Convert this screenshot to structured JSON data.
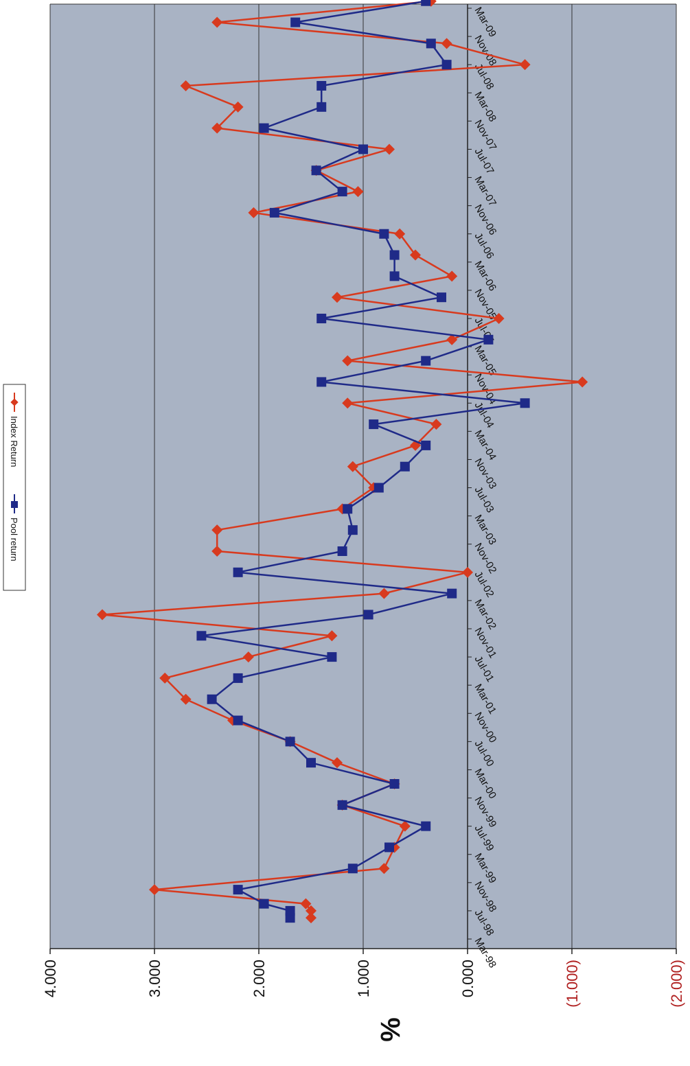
{
  "chart_data": {
    "type": "line",
    "title": "",
    "xlabel": "",
    "ylabel": "%",
    "ylim": [
      -2,
      4
    ],
    "y_ticks": [
      4,
      3,
      2,
      1,
      0,
      -1,
      -2
    ],
    "y_tick_labels": [
      "4.000",
      "3.000",
      "2.000",
      "1.000",
      "0.000",
      "(1.000)",
      "(2.000)"
    ],
    "negative_tick_color": "#b02020",
    "grid": true,
    "legend_position": "top",
    "orientation": "rotated 90 degrees clockwise (value axis runs horizontally, dates run vertically)",
    "category_labels": [
      "Mar-98",
      "Jul-98",
      "Nov-98",
      "Mar-99",
      "Jul-99",
      "Nov-99",
      "Mar-00",
      "Jul-00",
      "Nov-00",
      "Mar-01",
      "Jul-01",
      "Nov-01",
      "Mar-02",
      "Jul-02",
      "Nov-02",
      "Mar-03",
      "Jul-03",
      "Nov-03",
      "Mar-04",
      "Jul-04",
      "Nov-04",
      "Mar-05",
      "Jul-05",
      "Nov-05",
      "Mar-06",
      "Jul-06",
      "Nov-06",
      "Mar-07",
      "Jul-07",
      "Nov-07",
      "Mar-08",
      "Jul-08",
      "Nov-08",
      "Mar-09"
    ],
    "x": [
      "Jun-98",
      "Jul-98",
      "Aug-98",
      "Oct-98",
      "Jan-99",
      "Apr-99",
      "Jul-99",
      "Oct-99",
      "Jan-00",
      "Apr-00",
      "Jul-00",
      "Oct-00",
      "Jan-01",
      "Apr-01",
      "Jul-01",
      "Oct-01",
      "Jan-02",
      "Apr-02",
      "Jul-02",
      "Oct-02",
      "Jan-03",
      "Apr-03",
      "Jul-03",
      "Oct-03",
      "Jan-04",
      "Apr-04",
      "Jul-04",
      "Oct-04",
      "Jan-05",
      "Apr-05",
      "Jul-05",
      "Oct-05",
      "Jan-06",
      "Apr-06",
      "Jul-06",
      "Oct-06",
      "Jan-07",
      "Apr-07",
      "Jul-07",
      "Oct-07",
      "Jan-08",
      "Apr-08",
      "Jul-08",
      "Oct-08",
      "Jan-09",
      "Apr-09"
    ],
    "series": [
      {
        "name": "Index Return",
        "color": "#d83a1e",
        "marker": "diamond",
        "values": [
          1.5,
          1.5,
          1.55,
          3.0,
          0.8,
          0.7,
          0.6,
          1.2,
          0.7,
          1.25,
          1.7,
          2.25,
          2.7,
          2.9,
          2.1,
          1.3,
          3.5,
          0.8,
          0.0,
          2.4,
          2.4,
          1.2,
          0.9,
          1.1,
          0.5,
          0.3,
          1.15,
          -1.1,
          1.15,
          0.15,
          -0.3,
          1.25,
          0.15,
          0.5,
          0.65,
          2.05,
          1.05,
          1.45,
          0.75,
          2.4,
          2.2,
          2.7,
          -0.55,
          0.2,
          2.4,
          0.35
        ]
      },
      {
        "name": "Pool return",
        "color": "#1f2a88",
        "marker": "square",
        "values": [
          1.7,
          1.7,
          1.95,
          2.2,
          1.1,
          0.75,
          0.4,
          1.2,
          0.7,
          1.5,
          1.7,
          2.2,
          2.45,
          2.2,
          1.3,
          2.55,
          0.95,
          0.15,
          2.2,
          1.2,
          1.1,
          1.15,
          0.85,
          0.6,
          0.4,
          0.9,
          -0.55,
          1.4,
          0.4,
          -0.2,
          1.4,
          0.25,
          0.7,
          0.7,
          0.8,
          1.85,
          1.2,
          1.45,
          1.0,
          1.95,
          1.4,
          1.4,
          0.2,
          0.35,
          1.65,
          0.4
        ]
      }
    ]
  }
}
